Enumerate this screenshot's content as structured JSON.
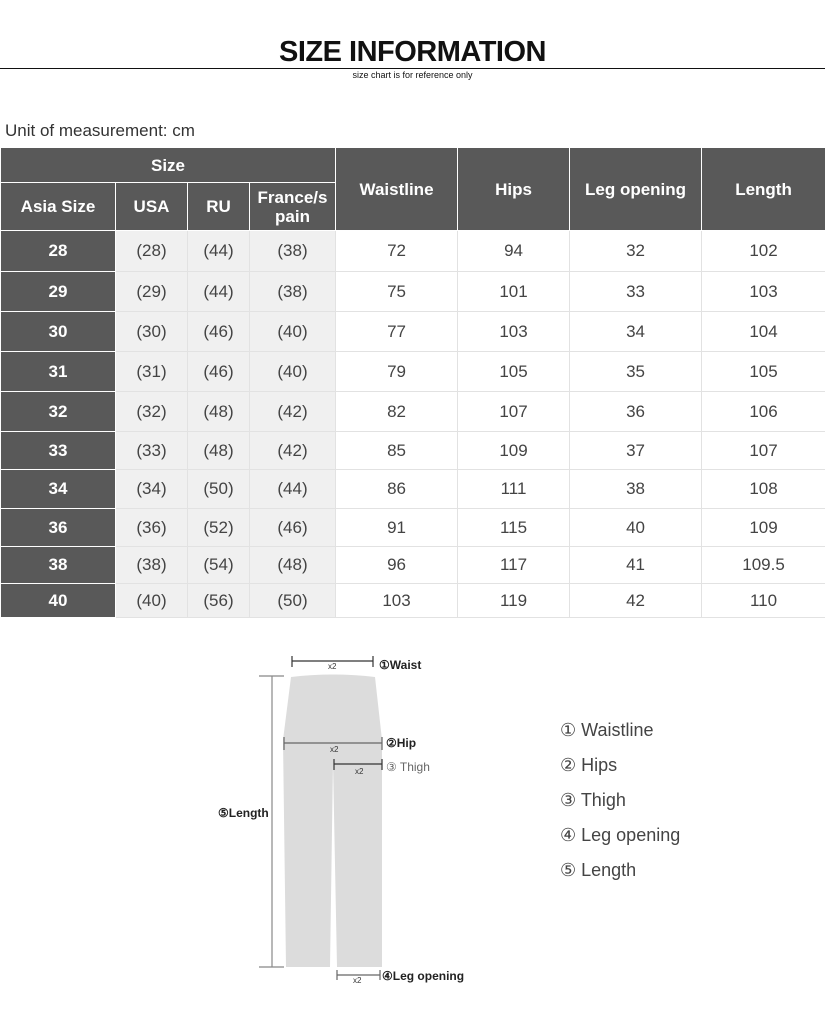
{
  "header": {
    "title": "SIZE INFORMATION",
    "subtitle": "size chart is for reference only"
  },
  "unit_label": "Unit of measurement: cm",
  "table": {
    "group_header": "Size",
    "size_columns": [
      "Asia Size",
      "USA",
      "RU",
      "France/s pain"
    ],
    "measure_columns": [
      "Waistline",
      "Hips",
      "Leg opening",
      "Length"
    ],
    "rows": [
      [
        "28",
        "(28)",
        "(44)",
        "(38)",
        "72",
        "94",
        "32",
        "102"
      ],
      [
        "29",
        "(29)",
        "(44)",
        "(38)",
        "75",
        "101",
        "33",
        "103"
      ],
      [
        "30",
        "(30)",
        "(46)",
        "(40)",
        "77",
        "103",
        "34",
        "104"
      ],
      [
        "31",
        "(31)",
        "(46)",
        "(40)",
        "79",
        "105",
        "35",
        "105"
      ],
      [
        "32",
        "(32)",
        "(48)",
        "(42)",
        "82",
        "107",
        "36",
        "106"
      ],
      [
        "33",
        "(33)",
        "(48)",
        "(42)",
        "85",
        "109",
        "37",
        "107"
      ],
      [
        "34",
        "(34)",
        "(50)",
        "(44)",
        "86",
        "111",
        "38",
        "108"
      ],
      [
        "36",
        "(36)",
        "(52)",
        "(46)",
        "91",
        "115",
        "40",
        "109"
      ],
      [
        "38",
        "(38)",
        "(54)",
        "(48)",
        "96",
        "117",
        "41",
        "109.5"
      ],
      [
        "40",
        "(40)",
        "(56)",
        "(50)",
        "103",
        "119",
        "42",
        "110"
      ]
    ]
  },
  "diagram": {
    "multiplier": "x2",
    "labels": {
      "waist": "①Waist",
      "hip": "②Hip",
      "thigh": "③ Thigh",
      "leg_opening": "④Leg opening",
      "length": "⑤Length"
    }
  },
  "legend": [
    "① Waistline",
    "② Hips",
    "③ Thigh",
    "④ Leg opening",
    "⑤ Length"
  ],
  "colors": {
    "header_bg": "#595959",
    "conv_bg": "#f0f0f0",
    "garment": "#dcdcdc"
  }
}
